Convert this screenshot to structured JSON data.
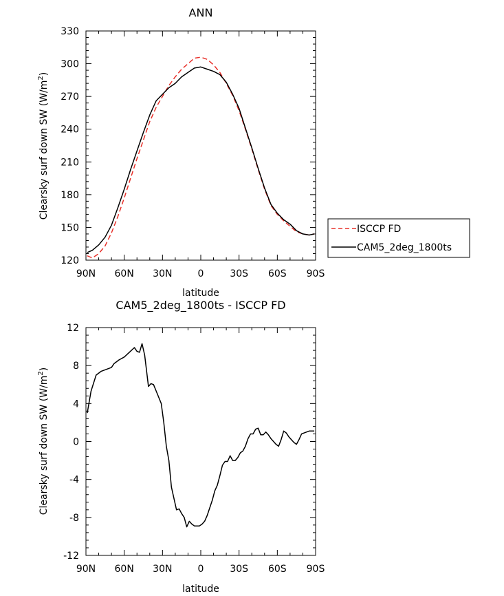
{
  "chart_data": [
    {
      "type": "line",
      "title": "ANN",
      "xlabel": "latitude",
      "ylabel": "Clearsky surf down SW (W/m2)",
      "xlim": [
        -90,
        90
      ],
      "ylim": [
        120,
        330
      ],
      "yticks": [
        120,
        150,
        180,
        210,
        240,
        270,
        300,
        330
      ],
      "xticks": [
        -90,
        -60,
        -30,
        0,
        30,
        60,
        90
      ],
      "xtick_labels": [
        "90N",
        "60N",
        "30N",
        "0",
        "30S",
        "60S",
        "90S"
      ],
      "legend": {
        "placement": "right",
        "entries": [
          "ISCCP FD",
          "CAM5_2deg_1800ts"
        ]
      },
      "series": [
        {
          "name": "ISCCP FD",
          "color": "#e8302a",
          "style": "dashed",
          "x": [
            -89,
            -85,
            -80,
            -75,
            -70,
            -65,
            -60,
            -55,
            -50,
            -45,
            -40,
            -35,
            -30,
            -25,
            -20,
            -15,
            -10,
            -5,
            0,
            5,
            10,
            15,
            20,
            25,
            30,
            35,
            40,
            45,
            50,
            55,
            60,
            65,
            70,
            75,
            80,
            85,
            89
          ],
          "y": [
            124,
            122,
            126,
            133,
            145,
            160,
            177,
            195,
            213,
            230,
            247,
            260,
            270,
            280,
            288,
            295,
            300,
            305,
            306,
            304,
            299,
            292,
            282,
            271,
            257,
            240,
            222,
            203,
            185,
            170,
            162,
            156,
            151,
            146,
            144,
            143,
            144
          ]
        },
        {
          "name": "CAM5_2deg_1800ts",
          "color": "#000000",
          "style": "solid",
          "x": [
            -89,
            -85,
            -80,
            -75,
            -70,
            -65,
            -60,
            -55,
            -50,
            -45,
            -40,
            -35,
            -30,
            -25,
            -20,
            -15,
            -10,
            -5,
            0,
            5,
            10,
            15,
            20,
            25,
            30,
            35,
            40,
            45,
            50,
            55,
            60,
            65,
            70,
            75,
            80,
            85,
            89
          ],
          "y": [
            127,
            129,
            134,
            141,
            152,
            168,
            185,
            203,
            220,
            237,
            253,
            266,
            272,
            278,
            282,
            288,
            292,
            296,
            297,
            295,
            293,
            290,
            283,
            272,
            259,
            241,
            223,
            204,
            186,
            171,
            163,
            157,
            153,
            147,
            144,
            143,
            144
          ]
        }
      ]
    },
    {
      "type": "line",
      "title": "CAM5_2deg_1800ts - ISCCP FD",
      "xlabel": "latitude",
      "ylabel": "Clearsky surf down SW (W/m2)",
      "xlim": [
        -90,
        90
      ],
      "ylim": [
        -12,
        12
      ],
      "yticks": [
        -12,
        -8,
        -4,
        0,
        4,
        8,
        12
      ],
      "ytick_labels": [
        "-12",
        "-8",
        "-4",
        "0",
        "4",
        "8",
        "12"
      ],
      "xticks": [
        -90,
        -60,
        -30,
        0,
        30,
        60,
        90
      ],
      "xtick_labels": [
        "90N",
        "60N",
        "30N",
        "0",
        "30S",
        "60S",
        "90S"
      ],
      "series": [
        {
          "name": "CAM5_2deg_1800ts - ISCCP FD",
          "color": "#000000",
          "style": "solid",
          "x": [
            -89,
            -86,
            -82,
            -78,
            -74,
            -70,
            -68,
            -64,
            -60,
            -56,
            -52,
            -50,
            -48,
            -46,
            -44,
            -41,
            -39,
            -37,
            -34,
            -31,
            -29,
            -27,
            -25,
            -23,
            -21,
            -19,
            -17,
            -15,
            -13,
            -11,
            -9,
            -7,
            -5,
            -3,
            -1,
            1,
            3,
            5,
            7,
            9,
            11,
            13,
            15,
            17,
            19,
            21,
            23,
            25,
            27,
            29,
            31,
            33,
            35,
            37,
            39,
            41,
            43,
            45,
            47,
            49,
            51,
            53,
            55,
            57,
            59,
            61,
            63,
            65,
            67,
            69,
            71,
            73,
            75,
            77,
            79,
            81,
            83,
            85,
            87,
            89
          ],
          "y": [
            3,
            5.3,
            7,
            7.4,
            7.6,
            7.8,
            8.2,
            8.6,
            8.9,
            9.4,
            9.9,
            9.5,
            9.4,
            10.3,
            9.1,
            5.8,
            6.1,
            6.0,
            5.0,
            4.0,
            2.0,
            -0.5,
            -2.0,
            -4.8,
            -6.0,
            -7.2,
            -7.1,
            -7.6,
            -8.0,
            -9.0,
            -8.4,
            -8.7,
            -8.9,
            -8.9,
            -8.9,
            -8.7,
            -8.4,
            -7.8,
            -7.0,
            -6.2,
            -5.2,
            -4.6,
            -3.6,
            -2.5,
            -2.1,
            -2.1,
            -1.5,
            -2.0,
            -2.0,
            -1.7,
            -1.2,
            -1.0,
            -0.5,
            0.3,
            0.8,
            0.8,
            1.3,
            1.4,
            0.7,
            0.7,
            1.0,
            0.7,
            0.3,
            0.0,
            -0.3,
            -0.5,
            0.2,
            1.1,
            0.9,
            0.5,
            0.2,
            -0.1,
            -0.3,
            0.2,
            0.8,
            0.9,
            1.0,
            1.1,
            1.1,
            1.1
          ]
        }
      ]
    }
  ]
}
